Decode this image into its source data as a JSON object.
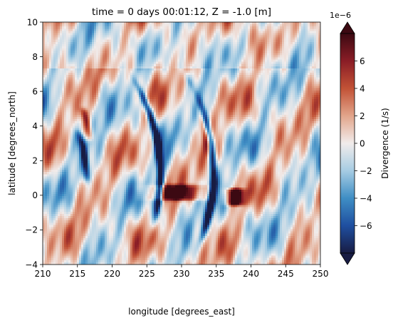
{
  "chart_data": {
    "type": "heatmap",
    "title": "time = 0 days 00:01:12, Z = -1.0 [m]",
    "xlabel": "longitude [degrees_east]",
    "ylabel": "latitude [degrees_north]",
    "xlim": [
      210,
      250
    ],
    "ylim": [
      -4,
      10
    ],
    "x_ticks": [
      "210",
      "215",
      "220",
      "225",
      "230",
      "235",
      "240",
      "245",
      "250"
    ],
    "y_ticks": [
      "−4",
      "−2",
      "0",
      "2",
      "4",
      "6",
      "8",
      "10"
    ],
    "colorbar": {
      "label": "Divergence (1/s)",
      "offset_text": "1e−6",
      "range": [
        -8,
        8
      ],
      "extend": "both",
      "ticks": [
        "−6",
        "−4",
        "−2",
        "0",
        "2",
        "4",
        "6"
      ],
      "colormap": "balance",
      "colors": [
        "#181c43",
        "#1f4fa0",
        "#3f8ec4",
        "#a6cce3",
        "#f1eceb",
        "#e2a58b",
        "#c25236",
        "#8a1d26",
        "#3c0912"
      ]
    },
    "field_features": [
      {
        "kind": "negative-streak",
        "lon": [
          214.8,
          217.3
        ],
        "lat": [
          0.8,
          3.6
        ],
        "value": -5.5
      },
      {
        "kind": "positive-streak",
        "lon": [
          215.3,
          217.5
        ],
        "lat": [
          3.2,
          5.0
        ],
        "value": 4
      },
      {
        "kind": "negative-streak",
        "lon": [
          224.0,
          229.5
        ],
        "lat": [
          -1.6,
          6.4
        ],
        "value": -7
      },
      {
        "kind": "negative-streak",
        "lon": [
          232.5,
          236.5
        ],
        "lat": [
          -2.5,
          6.6
        ],
        "value": -6.5
      },
      {
        "kind": "positive-blob",
        "lon": [
          236.5,
          239.0
        ],
        "lat": [
          -0.6,
          0.4
        ],
        "value": 7
      },
      {
        "kind": "positive-blob",
        "lon": [
          226.0,
          233.0
        ],
        "lat": [
          -0.3,
          0.6
        ],
        "value": 5
      },
      {
        "kind": "positive-streak",
        "lon": [
          230.5,
          235.5
        ],
        "lat": [
          2.5,
          6.4
        ],
        "value": 4.5
      }
    ]
  }
}
